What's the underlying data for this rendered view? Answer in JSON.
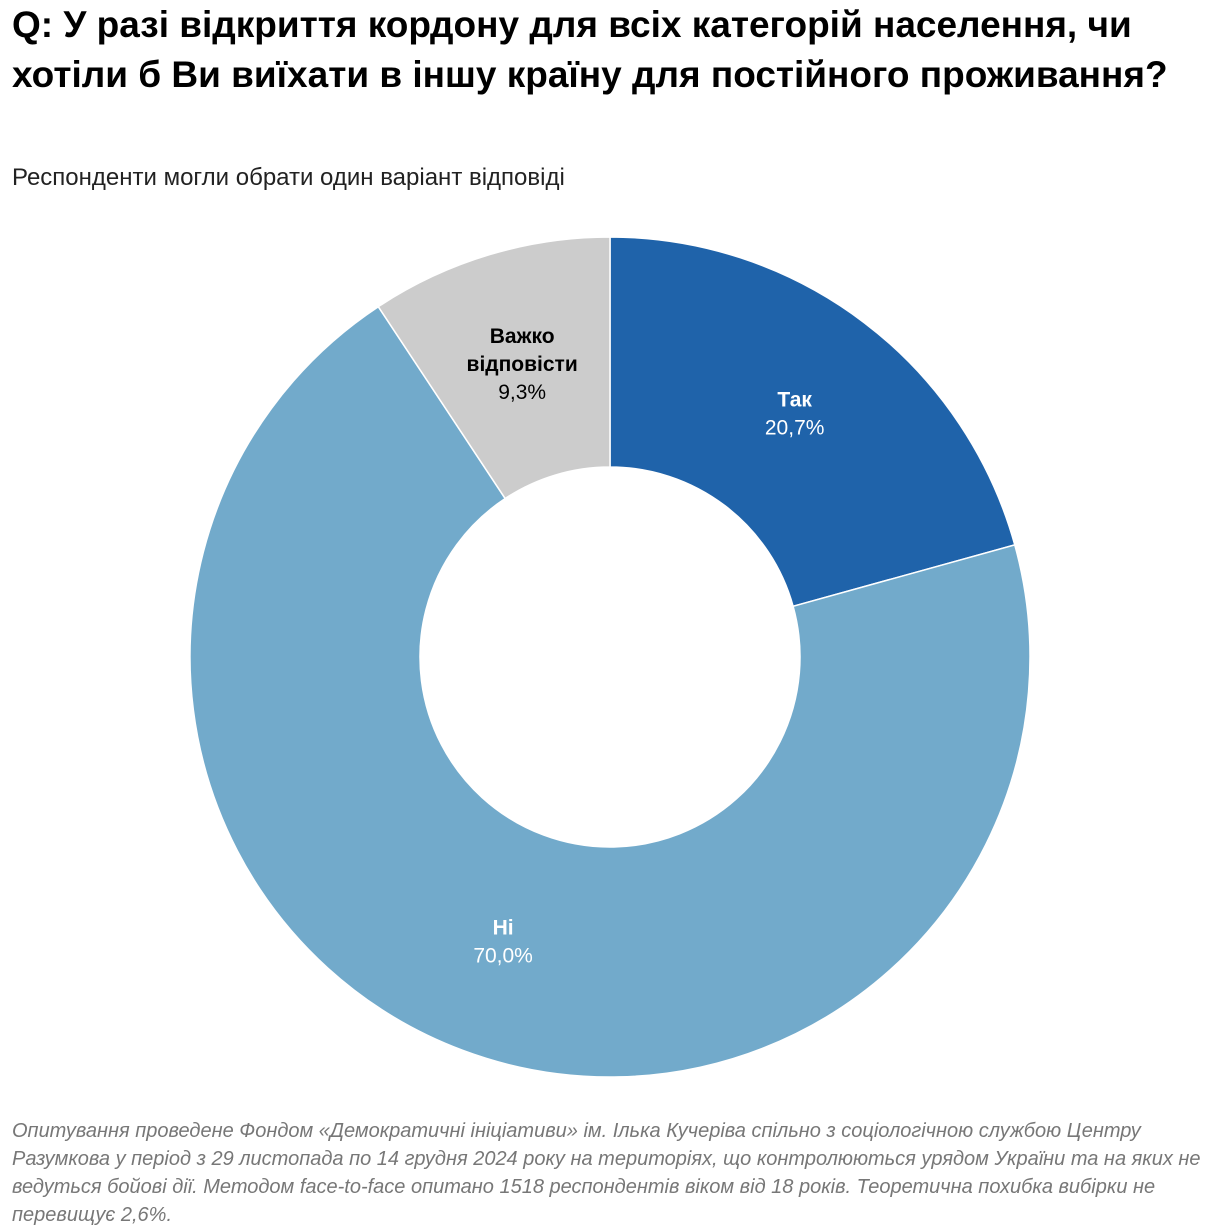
{
  "chart_data": {
    "type": "pie",
    "variant": "donut",
    "title": "Q: У разі відкриття кордону для всіх категорій населення, чи хотіли б Ви виїхати в іншу країну для постійного проживання?",
    "subtitle": "Респонденти могли обрати один варіант відповіді",
    "slices": [
      {
        "label": "Так",
        "label_lines": [
          "Так"
        ],
        "value": 20.7,
        "display": "20,7%",
        "color": "#1f63aa",
        "text_color": "#ffffff"
      },
      {
        "label": "Ні",
        "label_lines": [
          "Ні"
        ],
        "value": 70.0,
        "display": "70,0%",
        "color": "#72aacb",
        "text_color": "#ffffff"
      },
      {
        "label": "Важко відповісти",
        "label_lines": [
          "Важко",
          "відповісти"
        ],
        "value": 9.3,
        "display": "9,3%",
        "color": "#cccccc",
        "text_color": "#000000"
      }
    ],
    "note": "Опитування проведене Фондом «Демократичні ініціативи» ім. Ілька Кучеріва спільно з соціологічною службою Центру Разумкова у період з 29 листопада по 14 грудня 2024 року на територіях, що контролюються урядом України та на яких не ведуться бойові дії. Методом face-to-face опитано 1518 респондентів віком від 18 років. Теоретична похибка вибірки не перевищує 2,6%."
  }
}
